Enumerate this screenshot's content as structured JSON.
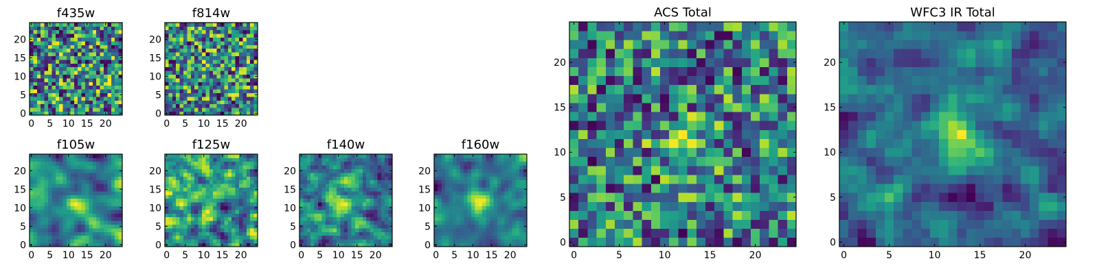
{
  "chart_data": [
    {
      "id": "p-f435w",
      "type": "heatmap",
      "title": "f435w",
      "grid": [
        25,
        25
      ],
      "seed": 11,
      "smooth": 0,
      "blob": 0.0,
      "xlim": [
        -0.5,
        24.5
      ],
      "ylim": [
        -0.5,
        24.5
      ],
      "xticks": [
        0,
        5,
        10,
        15,
        20
      ],
      "yticks": [
        0,
        5,
        10,
        15,
        20
      ],
      "colormap": "viridis",
      "origin": "lower"
    },
    {
      "id": "p-f814w",
      "type": "heatmap",
      "title": "f814w",
      "grid": [
        25,
        25
      ],
      "seed": 27,
      "smooth": 0,
      "blob": 0.1,
      "xlim": [
        -0.5,
        24.5
      ],
      "ylim": [
        -0.5,
        24.5
      ],
      "xticks": [
        0,
        5,
        10,
        15,
        20
      ],
      "yticks": [
        0,
        5,
        10,
        15,
        20
      ],
      "colormap": "viridis",
      "origin": "lower"
    },
    {
      "id": "p-f105w",
      "type": "heatmap",
      "title": "f105w",
      "grid": [
        25,
        25
      ],
      "seed": 43,
      "smooth": 2,
      "blob": 0.15,
      "xlim": [
        -0.5,
        24.5
      ],
      "ylim": [
        -0.5,
        24.5
      ],
      "xticks": [
        0,
        5,
        10,
        15,
        20
      ],
      "yticks": [
        0,
        5,
        10,
        15,
        20
      ],
      "colormap": "viridis",
      "origin": "lower"
    },
    {
      "id": "p-f125w",
      "type": "heatmap",
      "title": "f125w",
      "grid": [
        25,
        25
      ],
      "seed": 59,
      "smooth": 1,
      "blob": 0.1,
      "xlim": [
        -0.5,
        24.5
      ],
      "ylim": [
        -0.5,
        24.5
      ],
      "xticks": [
        0,
        5,
        10,
        15,
        20
      ],
      "yticks": [
        0,
        5,
        10,
        15,
        20
      ],
      "colormap": "viridis",
      "origin": "lower"
    },
    {
      "id": "p-f140w",
      "type": "heatmap",
      "title": "f140w",
      "grid": [
        25,
        25
      ],
      "seed": 71,
      "smooth": 1,
      "blob": 0.15,
      "xlim": [
        -0.5,
        24.5
      ],
      "ylim": [
        -0.5,
        24.5
      ],
      "xticks": [
        0,
        5,
        10,
        15,
        20
      ],
      "yticks": [
        0,
        5,
        10,
        15,
        20
      ],
      "colormap": "viridis",
      "origin": "lower"
    },
    {
      "id": "p-f160w",
      "type": "heatmap",
      "title": "f160w",
      "grid": [
        25,
        25
      ],
      "seed": 89,
      "smooth": 2,
      "blob": 0.35,
      "xlim": [
        -0.5,
        24.5
      ],
      "ylim": [
        -0.5,
        24.5
      ],
      "xticks": [
        0,
        5,
        10,
        15,
        20
      ],
      "yticks": [
        0,
        5,
        10,
        15,
        20
      ],
      "colormap": "viridis",
      "origin": "lower"
    },
    {
      "id": "p-acs",
      "type": "heatmap",
      "title": "ACS Total",
      "grid": [
        25,
        25
      ],
      "seed": 101,
      "smooth": 0,
      "blob": 0.15,
      "xlim": [
        -0.5,
        24.5
      ],
      "ylim": [
        -0.5,
        24.5
      ],
      "xticks": [
        0,
        5,
        10,
        15,
        20
      ],
      "yticks": [
        0,
        5,
        10,
        15,
        20
      ],
      "colormap": "viridis",
      "origin": "lower"
    },
    {
      "id": "p-wfc3",
      "type": "heatmap",
      "title": "WFC3 IR Total",
      "grid": [
        25,
        25
      ],
      "seed": 131,
      "smooth": 1,
      "blob": 0.5,
      "xlim": [
        -0.5,
        24.5
      ],
      "ylim": [
        -0.5,
        24.5
      ],
      "xticks": [
        0,
        5,
        10,
        15,
        20
      ],
      "yticks": [
        0,
        5,
        10,
        15,
        20
      ],
      "colormap": "viridis",
      "origin": "lower"
    }
  ]
}
